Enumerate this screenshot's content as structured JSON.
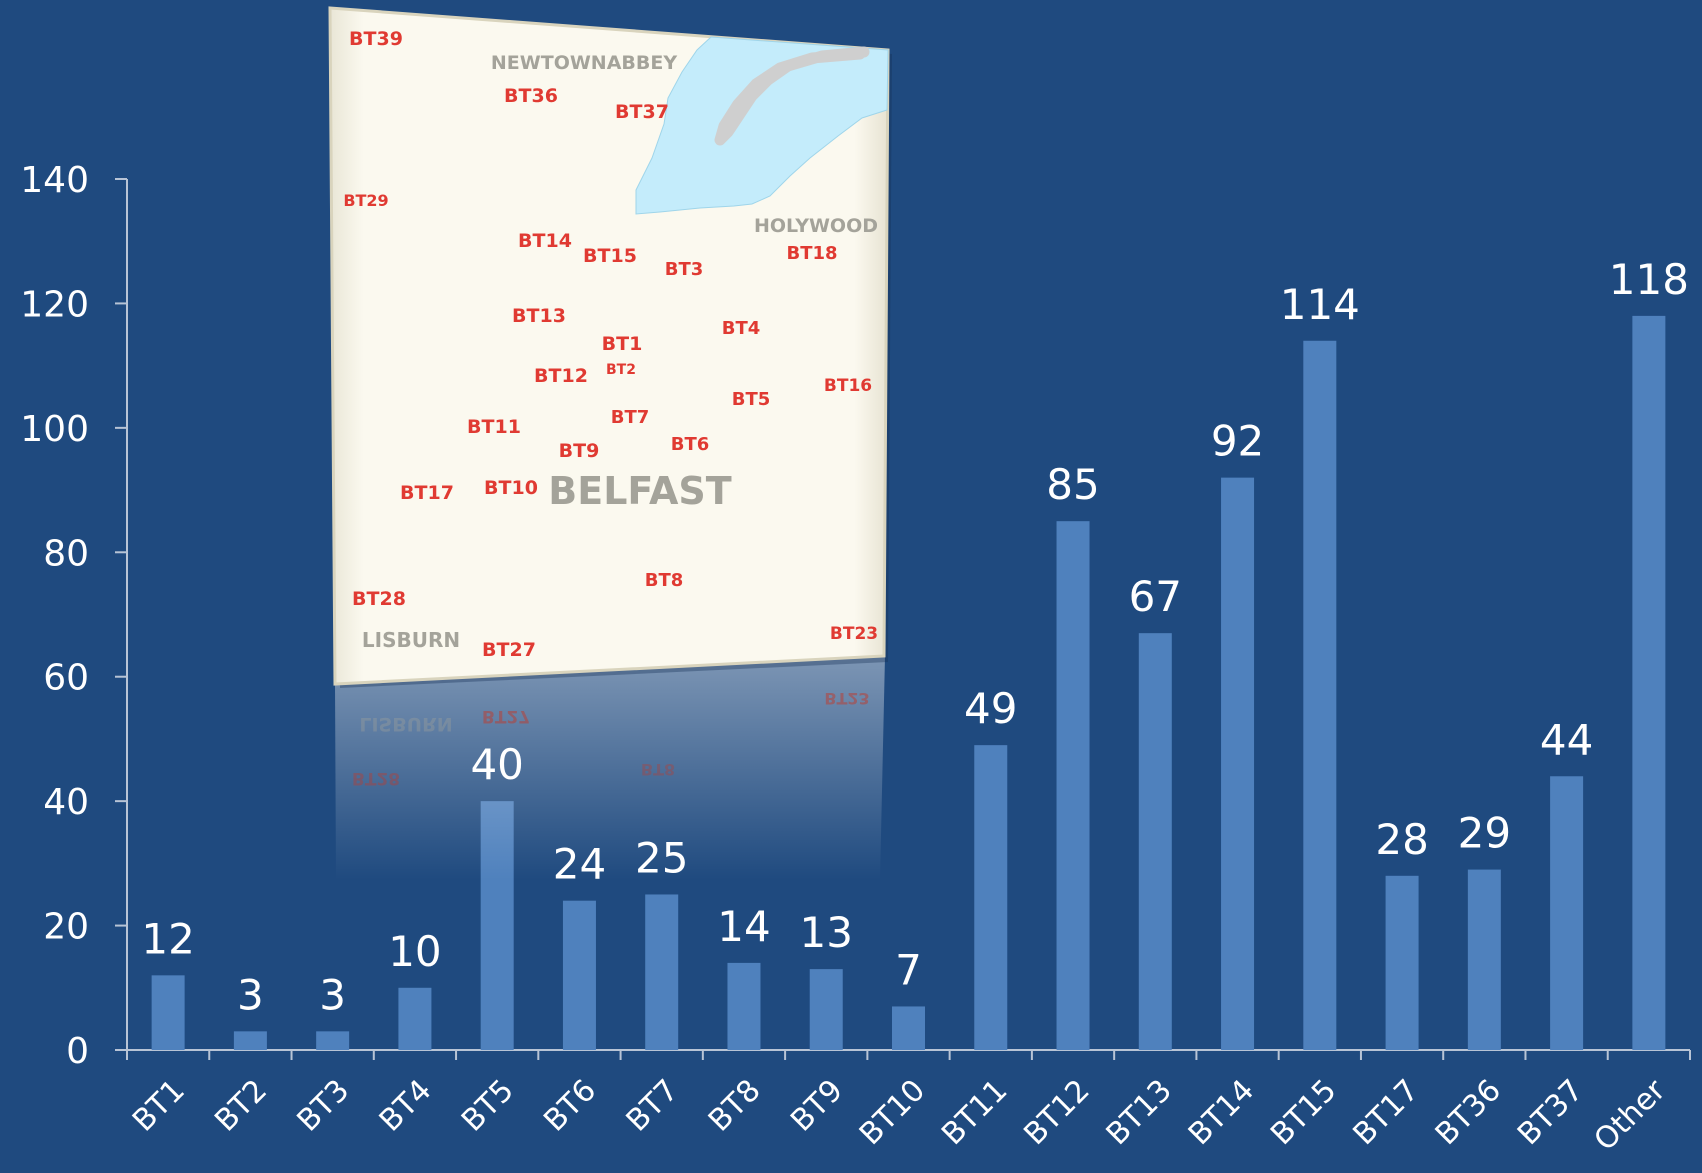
{
  "chart_data": {
    "type": "bar",
    "categories": [
      "BT1",
      "BT2",
      "BT3",
      "BT4",
      "BT5",
      "BT6",
      "BT7",
      "BT8",
      "BT9",
      "BT10",
      "BT11",
      "BT12",
      "BT13",
      "BT14",
      "BT15",
      "BT17",
      "BT36",
      "BT37",
      "Other"
    ],
    "values": [
      12,
      3,
      3,
      10,
      40,
      24,
      25,
      14,
      13,
      7,
      49,
      85,
      67,
      92,
      114,
      28,
      29,
      44,
      118
    ],
    "ylim": [
      0,
      140
    ],
    "yticks": [
      0,
      20,
      40,
      60,
      80,
      100,
      120,
      140
    ],
    "grid": false,
    "legend": "none",
    "title": "",
    "xlabel": "",
    "ylabel": ""
  },
  "map": {
    "towns": [
      {
        "name": "NEWTOWNABBEY"
      },
      {
        "name": "HOLYWOOD"
      },
      {
        "name": "BELFAST"
      },
      {
        "name": "LISBURN"
      }
    ],
    "postcodes": [
      "BT39",
      "BT36",
      "BT37",
      "BT29",
      "BT14",
      "BT15",
      "BT3",
      "BT18",
      "BT13",
      "BT4",
      "BT1",
      "BT2",
      "BT12",
      "BT16",
      "BT5",
      "BT11",
      "BT7",
      "BT6",
      "BT9",
      "BT17",
      "BT10",
      "BT8",
      "BT28",
      "BT23",
      "BT27"
    ],
    "reflection_labels": [
      "LISBURN",
      "BT27",
      "BT23",
      "BT28",
      "BT8"
    ]
  },
  "colors": {
    "background": "#1f4a7f",
    "bar": "#4f81bd",
    "axis": "#b8c4d6",
    "label": "#ffffff",
    "map_bg": "#fbf9ef",
    "water": "#c4ecfb",
    "postcode": "#e03a32",
    "town": "#a4a39a"
  }
}
